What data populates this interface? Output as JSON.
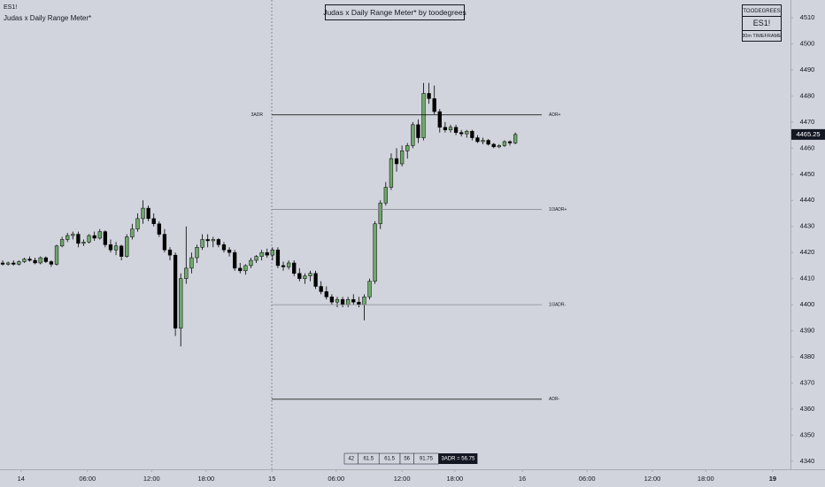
{
  "chart_data": {
    "type": "candlestick",
    "symbol": "ES1!",
    "indicator_name": "Judas x Daily Range Meter*",
    "title": "Judas x Daily Range Meter* by toodegrees",
    "info_box": [
      "TOODEGREES",
      "ES1!",
      "30m TIMEFRAME"
    ],
    "up_color": "#6fa86c",
    "down_color": "#000000",
    "xlim": [
      -0.5,
      146
    ],
    "xticks": [
      {
        "value": 3.4,
        "label": "14"
      },
      {
        "value": 15.7,
        "label": "06:00"
      },
      {
        "value": 27.6,
        "label": "12:00"
      },
      {
        "value": 37.7,
        "label": "18:00"
      },
      {
        "value": 49.9,
        "label": "15"
      },
      {
        "value": 61.8,
        "label": "06:00"
      },
      {
        "value": 74,
        "label": "12:00"
      },
      {
        "value": 83.8,
        "label": "18:00"
      },
      {
        "value": 96.3,
        "label": "16"
      },
      {
        "value": 108.3,
        "label": "06:00"
      },
      {
        "value": 120.4,
        "label": "12:00"
      },
      {
        "value": 130.3,
        "label": "18:00"
      },
      {
        "value": 142.7,
        "label": "19"
      }
    ],
    "ylim": [
      4336.9,
      4516.8
    ],
    "yticks": [
      4340,
      4350,
      4360,
      4370,
      4380,
      4390,
      4400,
      4410,
      4420,
      4430,
      4440,
      4450,
      4460,
      4470,
      4480,
      4490,
      4500,
      4510
    ],
    "level_left_label": "3ADR",
    "levels": [
      {
        "name": "ADR+",
        "value": 4472.75,
        "color": "#000000"
      },
      {
        "name": "1/3ADR+",
        "value": 4436.5,
        "color": "#8a8d93"
      },
      {
        "name": "1/3ADR-",
        "value": 4400,
        "color": "#8a8d93"
      },
      {
        "name": "ADR-",
        "value": 4363.75,
        "color": "#000000"
      }
    ],
    "range_table": [
      42,
      61.5,
      61.5,
      56,
      91.75
    ],
    "range_summary": "3ADR = 56.75",
    "ohlc": [
      [
        4416,
        4417,
        4415,
        4415.5
      ],
      [
        4415.5,
        4416.5,
        4415,
        4416
      ],
      [
        4416,
        4417,
        4415,
        4415.5
      ],
      [
        4415.5,
        4417,
        4415,
        4416.5
      ],
      [
        4416.5,
        4418,
        4416,
        4417.5
      ],
      [
        4417.5,
        4418.5,
        4416.5,
        4417
      ],
      [
        4417,
        4418,
        4415.5,
        4416
      ],
      [
        4416,
        4418.5,
        4415.5,
        4418
      ],
      [
        4418,
        4418.5,
        4416,
        4416.5
      ],
      [
        4416.5,
        4417,
        4414.5,
        4415.5
      ],
      [
        4415.5,
        4423,
        4415,
        4422.5
      ],
      [
        4422.5,
        4426,
        4422,
        4425
      ],
      [
        4425,
        4427.5,
        4424,
        4426.5
      ],
      [
        4426.5,
        4428,
        4425,
        4427
      ],
      [
        4427,
        4428,
        4422,
        4423.5
      ],
      [
        4423.5,
        4425,
        4422.5,
        4424
      ],
      [
        4424,
        4427,
        4423.5,
        4426.5
      ],
      [
        4426.5,
        4428,
        4424.5,
        4425.5
      ],
      [
        4425.5,
        4429,
        4425,
        4428
      ],
      [
        4428,
        4428.5,
        4422,
        4423
      ],
      [
        4423,
        4425,
        4420,
        4421
      ],
      [
        4421,
        4424,
        4419,
        4422.5
      ],
      [
        4422.5,
        4423,
        4417,
        4418.5
      ],
      [
        4418.5,
        4427,
        4418,
        4426
      ],
      [
        4426,
        4431,
        4425,
        4429
      ],
      [
        4429,
        4435,
        4428,
        4433
      ],
      [
        4433,
        4440,
        4431,
        4437
      ],
      [
        4437,
        4438,
        4432,
        4433
      ],
      [
        4433,
        4435,
        4430,
        4431
      ],
      [
        4431,
        4432,
        4426,
        4427
      ],
      [
        4427,
        4429,
        4420,
        4421
      ],
      [
        4421,
        4422,
        4417,
        4419
      ],
      [
        4419,
        4420,
        4388,
        4391
      ],
      [
        4391,
        4412,
        4384,
        4410
      ],
      [
        4410,
        4430,
        4408,
        4414
      ],
      [
        4414,
        4420,
        4412,
        4418
      ],
      [
        4418,
        4423,
        4416,
        4422
      ],
      [
        4422,
        4427,
        4421,
        4425
      ],
      [
        4425,
        4427,
        4422,
        4424.5
      ],
      [
        4424.5,
        4426,
        4422,
        4425
      ],
      [
        4425,
        4425.5,
        4422,
        4423
      ],
      [
        4423,
        4424,
        4420,
        4421
      ],
      [
        4421,
        4422,
        4418.5,
        4420
      ],
      [
        4420,
        4421,
        4413,
        4414
      ],
      [
        4414,
        4416,
        4412,
        4413
      ],
      [
        4413,
        4415.5,
        4411.5,
        4415
      ],
      [
        4415,
        4418,
        4414,
        4417
      ],
      [
        4417,
        4419,
        4416,
        4418.5
      ],
      [
        4418.5,
        4421,
        4417,
        4420
      ],
      [
        4420,
        4421.5,
        4418,
        4419
      ],
      [
        4419,
        4422,
        4417,
        4421
      ],
      [
        4421,
        4422,
        4414,
        4415
      ],
      [
        4415,
        4416.5,
        4413,
        4414.5
      ],
      [
        4414.5,
        4417,
        4413.5,
        4416
      ],
      [
        4416,
        4417,
        4411,
        4412
      ],
      [
        4412,
        4414,
        4409,
        4410
      ],
      [
        4410,
        4412,
        4408,
        4411
      ],
      [
        4411,
        4413,
        4409,
        4412
      ],
      [
        4412,
        4413,
        4406,
        4407
      ],
      [
        4407,
        4409,
        4404,
        4405
      ],
      [
        4405,
        4407,
        4402,
        4403
      ],
      [
        4403,
        4404,
        4400,
        4401
      ],
      [
        4401,
        4403,
        4399,
        4402
      ],
      [
        4402,
        4403,
        4399,
        4400
      ],
      [
        4400,
        4403,
        4399,
        4402
      ],
      [
        4402,
        4404,
        4400,
        4401
      ],
      [
        4401,
        4403,
        4399,
        4400
      ],
      [
        4400,
        4404,
        4394,
        4403
      ],
      [
        4403,
        4410,
        4402,
        4409
      ],
      [
        4409,
        4432,
        4408,
        4431
      ],
      [
        4431,
        4440,
        4429,
        4439
      ],
      [
        4439,
        4447,
        4438,
        4445
      ],
      [
        4445,
        4458,
        4444,
        4456
      ],
      [
        4456,
        4460,
        4451,
        4454
      ],
      [
        4454,
        4461,
        4453,
        4459
      ],
      [
        4459,
        4462,
        4456,
        4461
      ],
      [
        4461,
        4470,
        4460,
        4469
      ],
      [
        4469,
        4471,
        4462,
        4464
      ],
      [
        4464,
        4485,
        4463,
        4481
      ],
      [
        4481,
        4485,
        4477,
        4479
      ],
      [
        4479,
        4484,
        4473,
        4474
      ],
      [
        4474,
        4475,
        4466,
        4468
      ],
      [
        4468,
        4470,
        4466,
        4467
      ],
      [
        4467,
        4469,
        4466,
        4468
      ],
      [
        4468,
        4469,
        4465,
        4466
      ],
      [
        4466,
        4467,
        4464.5,
        4465.5
      ],
      [
        4465.5,
        4467,
        4464,
        4466.5
      ],
      [
        4466.5,
        4467,
        4463,
        4464
      ],
      [
        4464,
        4465,
        4462,
        4462.5
      ],
      [
        4462.5,
        4464,
        4461.5,
        4463
      ],
      [
        4463,
        4463.5,
        4461,
        4461.5
      ],
      [
        4461.5,
        4462,
        4460,
        4460.5
      ],
      [
        4460.5,
        4461.5,
        4460,
        4461
      ],
      [
        4461,
        4463,
        4460.5,
        4462.5
      ],
      [
        4462.5,
        4463,
        4461,
        4462
      ],
      [
        4462,
        4466,
        4461.5,
        4465.25
      ]
    ]
  }
}
